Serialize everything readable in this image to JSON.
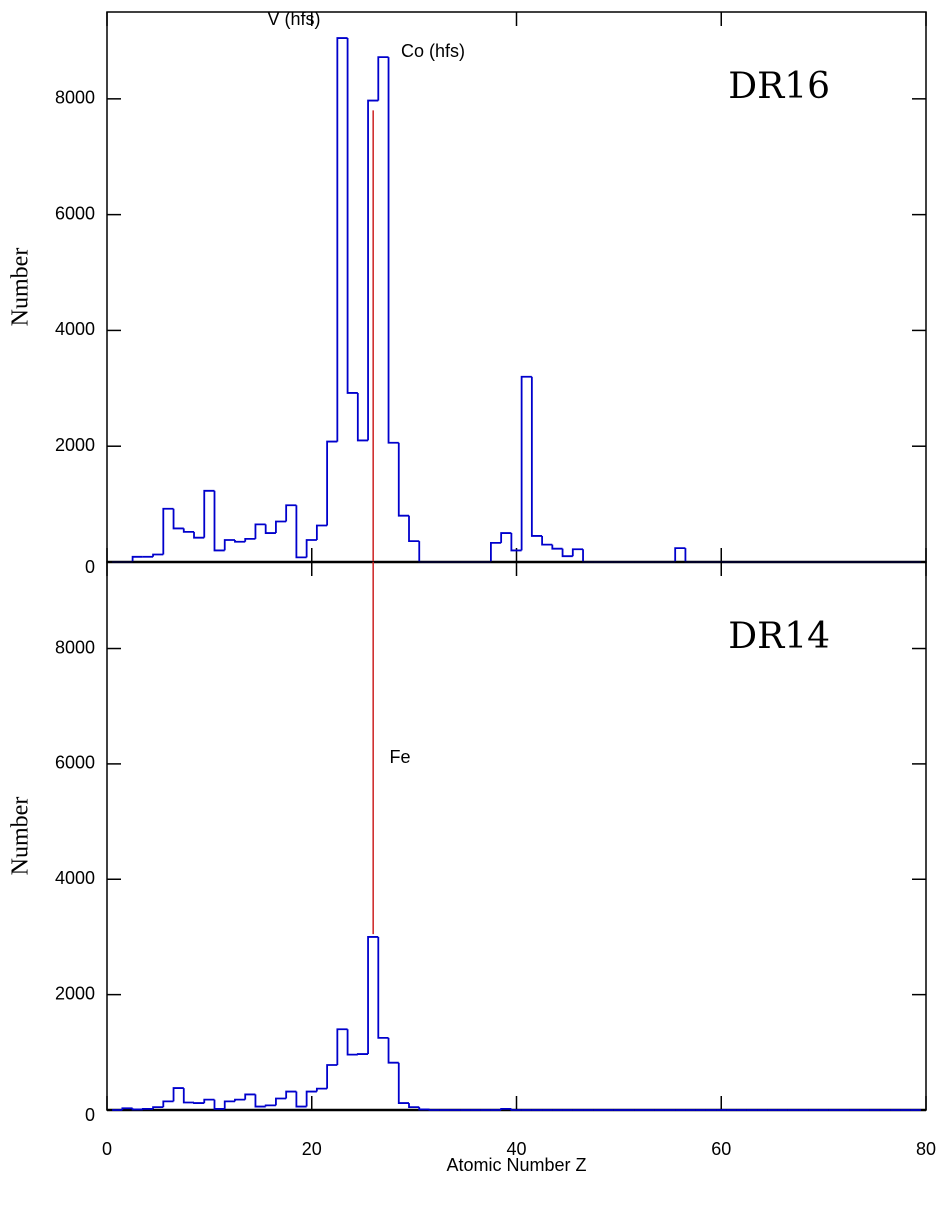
{
  "chart_data": [
    {
      "type": "histogram",
      "panel_label": "DR16",
      "y_label": "Number",
      "annotations": [
        "V (hfs)",
        "Co (hfs)"
      ],
      "bins": [
        0.5,
        1.5,
        2.5,
        3.5,
        4.5,
        5.5,
        6.5,
        7.5,
        8.5,
        9.5,
        10.5,
        11.5,
        12.5,
        13.5,
        14.5,
        15.5,
        16.5,
        17.5,
        18.5,
        19.5,
        20.5,
        21.5,
        22.5,
        23.5,
        24.5,
        25.5,
        26.5,
        27.5,
        28.5,
        29.5,
        30.5,
        31.5,
        32.5,
        33.5,
        34.5,
        35.5,
        36.5,
        37.5,
        38.5,
        39.5,
        40.5,
        41.5,
        42.5,
        43.5,
        44.5,
        45.5,
        46.5,
        47.5,
        48.5,
        49.5,
        50.5,
        51.5,
        52.5,
        53.5,
        54.5,
        55.5,
        56.5,
        57.5,
        58.5,
        59.5,
        60.5,
        61.5,
        62.5,
        63.5,
        64.5,
        65.5,
        66.5,
        67.5,
        68.5,
        69.5,
        70.5,
        71.5,
        72.5,
        73.5,
        74.5,
        75.5,
        76.5,
        77.5,
        78.5,
        79.5
      ],
      "counts": [
        0,
        0,
        90,
        90,
        130,
        920,
        580,
        520,
        420,
        1230,
        200,
        380,
        350,
        400,
        650,
        500,
        700,
        980,
        80,
        380,
        630,
        2080,
        9050,
        2920,
        2100,
        7970,
        8720,
        2060,
        800,
        360,
        0,
        0,
        0,
        0,
        0,
        0,
        0,
        330,
        500,
        200,
        3200,
        450,
        300,
        230,
        100,
        220,
        0,
        0,
        0,
        0,
        0,
        0,
        0,
        0,
        0,
        240,
        0,
        0,
        0,
        0,
        0,
        0,
        0,
        0,
        0,
        0,
        0,
        0,
        0,
        0,
        0,
        0,
        0,
        0,
        0,
        0,
        0,
        0,
        0
      ],
      "color": "#0000cc",
      "reference_line": {
        "x": 26,
        "y": 7800,
        "color": "#cc2222"
      },
      "xlim": [
        0,
        80
      ],
      "xticks": [
        0,
        20,
        40,
        60,
        80
      ],
      "ylim": [
        0,
        9500
      ],
      "yticks": [
        0,
        2000,
        4000,
        6000,
        8000
      ]
    },
    {
      "type": "histogram",
      "panel_label": "DR14",
      "y_label": "Number",
      "x_label": "Atomic Number Z",
      "annotations": [
        "Fe"
      ],
      "bins": [
        0.5,
        1.5,
        2.5,
        3.5,
        4.5,
        5.5,
        6.5,
        7.5,
        8.5,
        9.5,
        10.5,
        11.5,
        12.5,
        13.5,
        14.5,
        15.5,
        16.5,
        17.5,
        18.5,
        19.5,
        20.5,
        21.5,
        22.5,
        23.5,
        24.5,
        25.5,
        26.5,
        27.5,
        28.5,
        29.5,
        30.5,
        31.5,
        32.5,
        33.5,
        34.5,
        35.5,
        36.5,
        37.5,
        38.5,
        39.5,
        40.5,
        41.5,
        42.5,
        43.5,
        44.5,
        45.5,
        46.5,
        47.5,
        48.5,
        49.5,
        50.5,
        51.5,
        52.5,
        53.5,
        54.5,
        55.5,
        56.5,
        57.5,
        58.5,
        59.5,
        60.5,
        61.5,
        62.5,
        63.5,
        64.5,
        65.5,
        66.5,
        67.5,
        68.5,
        69.5,
        70.5,
        71.5,
        72.5,
        73.5,
        74.5,
        75.5,
        76.5,
        77.5,
        78.5,
        79.5
      ],
      "counts": [
        0,
        30,
        10,
        20,
        50,
        150,
        380,
        130,
        120,
        180,
        20,
        150,
        180,
        270,
        60,
        80,
        200,
        320,
        60,
        320,
        370,
        780,
        1400,
        960,
        970,
        3000,
        1250,
        820,
        120,
        50,
        10,
        0,
        0,
        0,
        0,
        0,
        0,
        0,
        20,
        0,
        0,
        0,
        0,
        0,
        0,
        0,
        0,
        0,
        0,
        0,
        0,
        0,
        0,
        0,
        0,
        0,
        0,
        0,
        0,
        0,
        0,
        0,
        0,
        0,
        0,
        0,
        0,
        0,
        0,
        0,
        0,
        0,
        0,
        0,
        0,
        0,
        0,
        0,
        0
      ],
      "color": "#0000cc",
      "reference_line": {
        "x": 26,
        "y": 3050,
        "color": "#cc2222"
      },
      "xlim": [
        0,
        80
      ],
      "xticks": [
        0,
        20,
        40,
        60,
        80
      ],
      "ylim": [
        0,
        9500
      ],
      "yticks": [
        0,
        2000,
        4000,
        6000,
        8000
      ]
    }
  ]
}
